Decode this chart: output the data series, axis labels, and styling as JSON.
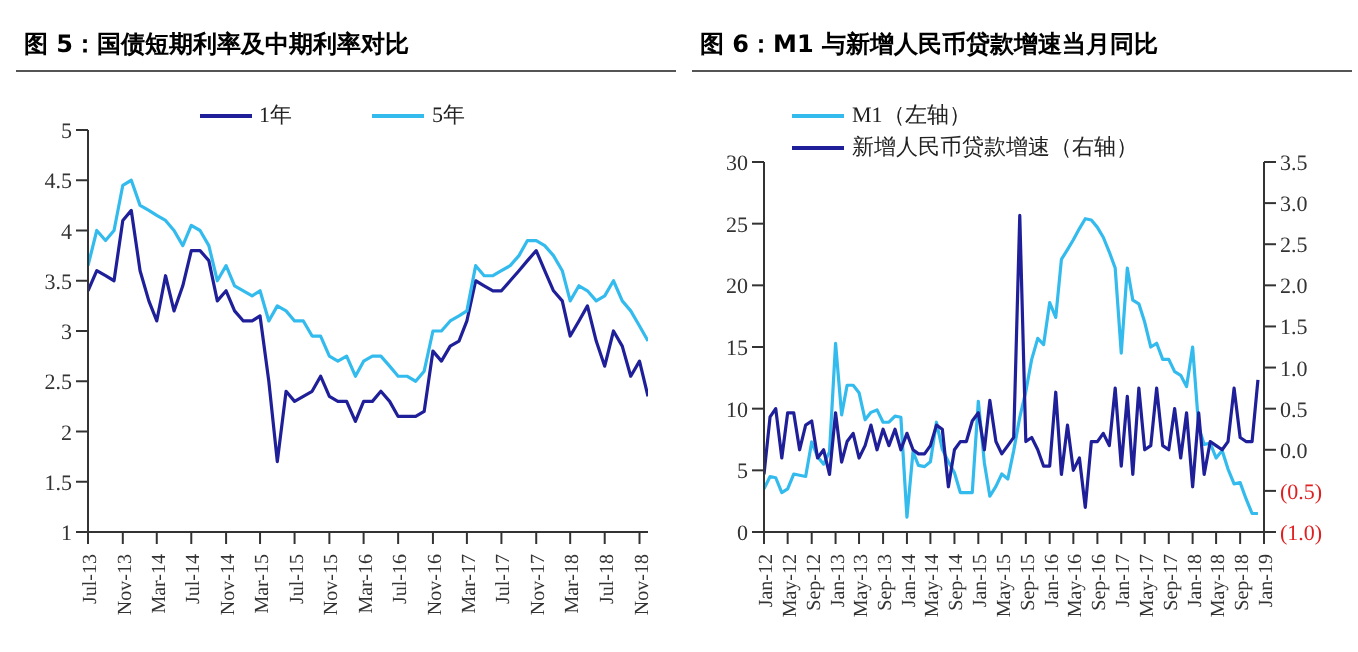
{
  "chart_data": [
    {
      "type": "line",
      "title": "图 5：国债短期利率及中期利率对比",
      "x": [
        "2013-07",
        "2013-08",
        "2013-09",
        "2013-10",
        "2013-11",
        "2013-12",
        "2014-01",
        "2014-02",
        "2014-03",
        "2014-04",
        "2014-05",
        "2014-06",
        "2014-07",
        "2014-08",
        "2014-09",
        "2014-10",
        "2014-11",
        "2014-12",
        "2015-01",
        "2015-02",
        "2015-03",
        "2015-04",
        "2015-05",
        "2015-06",
        "2015-07",
        "2015-08",
        "2015-09",
        "2015-10",
        "2015-11",
        "2015-12",
        "2016-01",
        "2016-02",
        "2016-03",
        "2016-04",
        "2016-05",
        "2016-06",
        "2016-07",
        "2016-08",
        "2016-09",
        "2016-10",
        "2016-11",
        "2016-12",
        "2017-01",
        "2017-02",
        "2017-03",
        "2017-04",
        "2017-05",
        "2017-06",
        "2017-07",
        "2017-08",
        "2017-09",
        "2017-10",
        "2017-11",
        "2017-12",
        "2018-01",
        "2018-02",
        "2018-03",
        "2018-04",
        "2018-05",
        "2018-06",
        "2018-07",
        "2018-08",
        "2018-09",
        "2018-10",
        "2018-11",
        "2018-12"
      ],
      "series": [
        {
          "name": "1年",
          "color": "#1f1f99",
          "values": [
            3.4,
            3.6,
            3.55,
            3.5,
            4.1,
            4.2,
            3.6,
            3.3,
            3.1,
            3.55,
            3.2,
            3.45,
            3.8,
            3.8,
            3.7,
            3.3,
            3.4,
            3.2,
            3.1,
            3.1,
            3.15,
            2.5,
            1.7,
            2.4,
            2.3,
            2.35,
            2.4,
            2.55,
            2.35,
            2.3,
            2.3,
            2.1,
            2.3,
            2.3,
            2.4,
            2.3,
            2.15,
            2.15,
            2.15,
            2.2,
            2.8,
            2.7,
            2.85,
            2.9,
            3.1,
            3.5,
            3.45,
            3.4,
            3.4,
            3.5,
            3.6,
            3.7,
            3.8,
            3.6,
            3.4,
            3.3,
            2.95,
            3.1,
            3.25,
            2.9,
            2.65,
            3.0,
            2.85,
            2.55,
            2.7,
            2.35
          ]
        },
        {
          "name": "5年",
          "color": "#33bbee",
          "values": [
            3.65,
            4.0,
            3.9,
            4.0,
            4.45,
            4.5,
            4.25,
            4.2,
            4.15,
            4.1,
            4.0,
            3.85,
            4.05,
            4.0,
            3.85,
            3.5,
            3.65,
            3.45,
            3.4,
            3.35,
            3.4,
            3.1,
            3.25,
            3.2,
            3.1,
            3.1,
            2.95,
            2.95,
            2.75,
            2.7,
            2.75,
            2.55,
            2.7,
            2.75,
            2.75,
            2.65,
            2.55,
            2.55,
            2.5,
            2.6,
            3.0,
            3.0,
            3.1,
            3.15,
            3.2,
            3.65,
            3.55,
            3.55,
            3.6,
            3.65,
            3.75,
            3.9,
            3.9,
            3.85,
            3.75,
            3.6,
            3.3,
            3.45,
            3.4,
            3.3,
            3.35,
            3.5,
            3.3,
            3.2,
            3.05,
            2.9
          ]
        }
      ],
      "xlim": [
        "2013-07",
        "2018-12"
      ],
      "xticks": [
        {
          "value": "2013-07",
          "label": "Jul-13"
        },
        {
          "value": "2013-11",
          "label": "Nov-13"
        },
        {
          "value": "2014-03",
          "label": "Mar-14"
        },
        {
          "value": "2014-07",
          "label": "Jul-14"
        },
        {
          "value": "2014-11",
          "label": "Nov-14"
        },
        {
          "value": "2015-03",
          "label": "Mar-15"
        },
        {
          "value": "2015-07",
          "label": "Jul-15"
        },
        {
          "value": "2015-11",
          "label": "Nov-15"
        },
        {
          "value": "2016-03",
          "label": "Mar-16"
        },
        {
          "value": "2016-07",
          "label": "Jul-16"
        },
        {
          "value": "2016-11",
          "label": "Nov-16"
        },
        {
          "value": "2017-03",
          "label": "Mar-17"
        },
        {
          "value": "2017-07",
          "label": "Jul-17"
        },
        {
          "value": "2017-11",
          "label": "Nov-17"
        },
        {
          "value": "2018-03",
          "label": "Mar-18"
        },
        {
          "value": "2018-07",
          "label": "Jul-18"
        },
        {
          "value": "2018-11",
          "label": "Nov-18"
        }
      ],
      "ylim": [
        1,
        5
      ],
      "yticks": [
        1,
        1.5,
        2,
        2.5,
        3,
        3.5,
        4,
        4.5,
        5
      ],
      "legend": "top",
      "grid": false,
      "marker": "none"
    },
    {
      "type": "line",
      "title": "图 6：M1 与新增人民币贷款增速当月同比",
      "x": [
        "2012-01",
        "2012-02",
        "2012-03",
        "2012-04",
        "2012-05",
        "2012-06",
        "2012-07",
        "2012-08",
        "2012-09",
        "2012-10",
        "2012-11",
        "2012-12",
        "2013-01",
        "2013-02",
        "2013-03",
        "2013-04",
        "2013-05",
        "2013-06",
        "2013-07",
        "2013-08",
        "2013-09",
        "2013-10",
        "2013-11",
        "2013-12",
        "2014-01",
        "2014-02",
        "2014-03",
        "2014-04",
        "2014-05",
        "2014-06",
        "2014-07",
        "2014-08",
        "2014-09",
        "2014-10",
        "2014-11",
        "2014-12",
        "2015-01",
        "2015-02",
        "2015-03",
        "2015-04",
        "2015-05",
        "2015-06",
        "2015-07",
        "2015-08",
        "2015-09",
        "2015-10",
        "2015-11",
        "2015-12",
        "2016-01",
        "2016-02",
        "2016-03",
        "2016-04",
        "2016-05",
        "2016-06",
        "2016-07",
        "2016-08",
        "2016-09",
        "2016-10",
        "2016-11",
        "2016-12",
        "2017-01",
        "2017-02",
        "2017-03",
        "2017-04",
        "2017-05",
        "2017-06",
        "2017-07",
        "2017-08",
        "2017-09",
        "2017-10",
        "2017-11",
        "2017-12",
        "2018-01",
        "2018-02",
        "2018-03",
        "2018-04",
        "2018-05",
        "2018-06",
        "2018-07",
        "2018-08",
        "2018-09",
        "2018-10",
        "2018-11",
        "2018-12"
      ],
      "series": [
        {
          "name": "M1（左轴）",
          "color": "#33bbee",
          "values": [
            3.5,
            4.5,
            4.4,
            3.2,
            3.5,
            4.7,
            4.6,
            4.5,
            7.3,
            6.1,
            5.5,
            6.5,
            15.3,
            9.5,
            11.9,
            11.9,
            11.3,
            9.1,
            9.7,
            9.9,
            8.9,
            8.9,
            9.4,
            9.3,
            1.2,
            6.5,
            5.4,
            5.3,
            5.7,
            8.9,
            6.7,
            5.7,
            4.8,
            3.2,
            3.2,
            3.2,
            10.6,
            5.6,
            2.9,
            3.7,
            4.7,
            4.3,
            6.6,
            9.3,
            11.4,
            14.0,
            15.7,
            15.2,
            18.6,
            17.4,
            22.1,
            22.9,
            23.7,
            24.6,
            25.4,
            25.3,
            24.7,
            23.9,
            22.7,
            21.4,
            14.5,
            21.4,
            18.8,
            18.5,
            17.0,
            15.0,
            15.3,
            14.0,
            14.0,
            13.0,
            12.7,
            11.8,
            15.0,
            8.5,
            7.1,
            7.2,
            6.0,
            6.6,
            5.1,
            3.9,
            4.0,
            2.7,
            1.5,
            1.5
          ]
        },
        {
          "name": "新增人民币贷款增速（右轴）",
          "color": "#1f1f99",
          "axis": "y2",
          "values": [
            -0.3,
            0.4,
            0.5,
            -0.1,
            0.45,
            0.45,
            0.0,
            0.3,
            0.35,
            -0.1,
            0.0,
            -0.3,
            0.45,
            -0.15,
            0.1,
            0.2,
            -0.1,
            0.05,
            0.3,
            0.0,
            0.25,
            0.05,
            0.25,
            0.0,
            0.2,
            0.0,
            -0.05,
            -0.05,
            0.05,
            0.3,
            0.25,
            -0.45,
            0.0,
            0.1,
            0.1,
            0.35,
            0.45,
            0.0,
            0.6,
            0.1,
            -0.05,
            0.05,
            0.15,
            2.85,
            0.1,
            0.15,
            0.0,
            -0.2,
            -0.2,
            0.7,
            -0.3,
            0.3,
            -0.25,
            -0.1,
            -0.7,
            0.1,
            0.1,
            0.2,
            0.05,
            0.75,
            -0.2,
            0.65,
            -0.3,
            0.75,
            0.0,
            0.05,
            0.75,
            0.05,
            0.0,
            0.5,
            -0.1,
            0.45,
            -0.45,
            0.45,
            -0.3,
            0.1,
            0.05,
            0.0,
            0.1,
            0.75,
            0.15,
            0.1,
            0.1,
            0.85
          ]
        }
      ],
      "xlim": [
        "2012-01",
        "2019-01"
      ],
      "xticks": [
        {
          "value": "2012-01",
          "label": "Jan-12"
        },
        {
          "value": "2012-05",
          "label": "May-12"
        },
        {
          "value": "2012-09",
          "label": "Sep-12"
        },
        {
          "value": "2013-01",
          "label": "Jan-13"
        },
        {
          "value": "2013-05",
          "label": "May-13"
        },
        {
          "value": "2013-09",
          "label": "Sep-13"
        },
        {
          "value": "2014-01",
          "label": "Jan-14"
        },
        {
          "value": "2014-05",
          "label": "May-14"
        },
        {
          "value": "2014-09",
          "label": "Sep-14"
        },
        {
          "value": "2015-01",
          "label": "Jan-15"
        },
        {
          "value": "2015-05",
          "label": "May-15"
        },
        {
          "value": "2015-09",
          "label": "Sep-15"
        },
        {
          "value": "2016-01",
          "label": "Jan-16"
        },
        {
          "value": "2016-05",
          "label": "May-16"
        },
        {
          "value": "2016-09",
          "label": "Sep-16"
        },
        {
          "value": "2017-01",
          "label": "Jan-17"
        },
        {
          "value": "2017-05",
          "label": "May-17"
        },
        {
          "value": "2017-09",
          "label": "Sep-17"
        },
        {
          "value": "2018-01",
          "label": "Jan-18"
        },
        {
          "value": "2018-05",
          "label": "May-18"
        },
        {
          "value": "2018-09",
          "label": "Sep-18"
        },
        {
          "value": "2019-01",
          "label": "Jan-19"
        }
      ],
      "ylim": [
        0,
        30
      ],
      "yticks": [
        0,
        5,
        10,
        15,
        20,
        25,
        30
      ],
      "y2lim": [
        -1,
        3.5
      ],
      "y2ticks": [
        {
          "value": -1,
          "label": "(1.0)"
        },
        {
          "value": -0.5,
          "label": "(0.5)"
        },
        {
          "value": 0,
          "label": "0.0"
        },
        {
          "value": 0.5,
          "label": "0.5"
        },
        {
          "value": 1,
          "label": "1.0"
        },
        {
          "value": 1.5,
          "label": "1.5"
        },
        {
          "value": 2,
          "label": "2.0"
        },
        {
          "value": 2.5,
          "label": "2.5"
        },
        {
          "value": 3,
          "label": "3.0"
        },
        {
          "value": 3.5,
          "label": "3.5"
        }
      ],
      "legend": "top left",
      "grid": false,
      "marker": "none"
    }
  ]
}
